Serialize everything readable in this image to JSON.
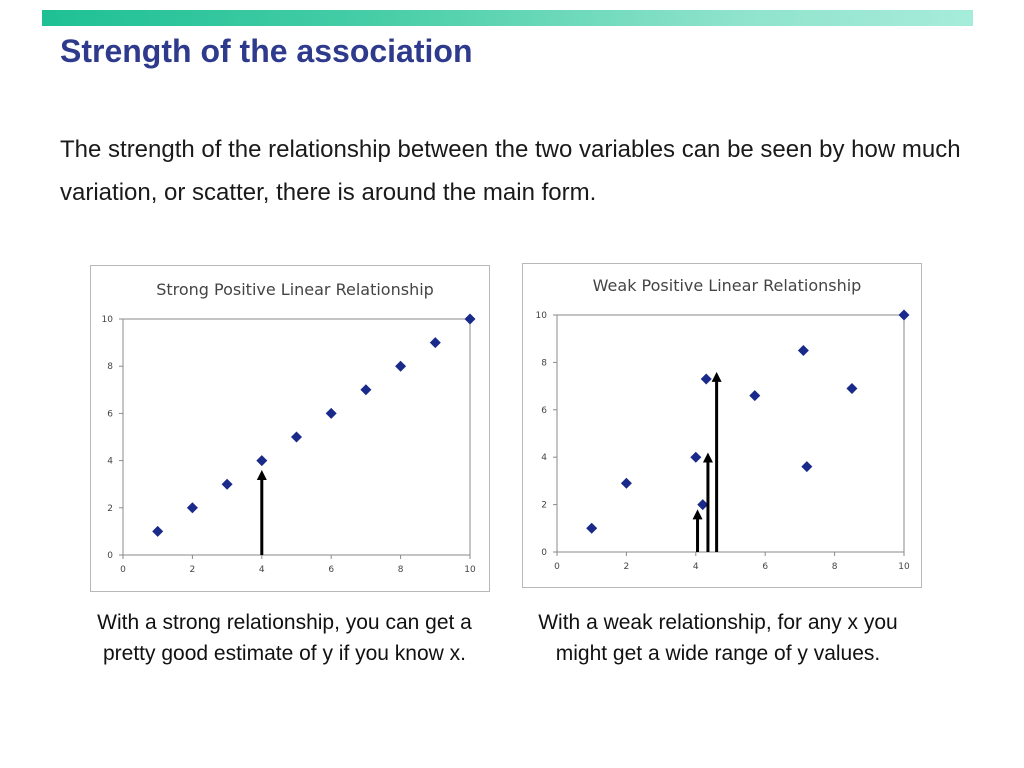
{
  "slide": {
    "title": "Strength of the association",
    "body": "The strength of the relationship between the two variables can be seen by how much variation, or scatter, there is around the main form."
  },
  "colors": {
    "point": "#1a2a8a",
    "arrow": "#000000",
    "title": "#2e3a8c"
  },
  "chart_data": [
    {
      "type": "scatter",
      "title": "Strong Positive Linear Relationship",
      "xlabel": "",
      "ylabel": "",
      "xlim": [
        0,
        10
      ],
      "ylim": [
        0,
        10
      ],
      "xticks": [
        0,
        2,
        4,
        6,
        8,
        10
      ],
      "yticks": [
        0,
        2,
        4,
        6,
        8,
        10
      ],
      "grid": false,
      "points": [
        {
          "x": 1,
          "y": 1
        },
        {
          "x": 2,
          "y": 2
        },
        {
          "x": 3,
          "y": 3
        },
        {
          "x": 4,
          "y": 4
        },
        {
          "x": 5,
          "y": 5
        },
        {
          "x": 6,
          "y": 6
        },
        {
          "x": 7,
          "y": 7
        },
        {
          "x": 8,
          "y": 8
        },
        {
          "x": 9,
          "y": 9
        },
        {
          "x": 10,
          "y": 10
        }
      ],
      "arrows": [
        {
          "x": 4,
          "y_to": 3.6
        }
      ],
      "caption": "With a strong relationship, you can get a pretty good estimate of y if you know x."
    },
    {
      "type": "scatter",
      "title": "Weak Positive Linear Relationship",
      "xlabel": "",
      "ylabel": "",
      "xlim": [
        0,
        10
      ],
      "ylim": [
        0,
        10
      ],
      "xticks": [
        0,
        2,
        4,
        6,
        8,
        10
      ],
      "yticks": [
        0,
        2,
        4,
        6,
        8,
        10
      ],
      "grid": false,
      "points": [
        {
          "x": 1,
          "y": 1
        },
        {
          "x": 2,
          "y": 2.9
        },
        {
          "x": 4,
          "y": 4
        },
        {
          "x": 4.2,
          "y": 2
        },
        {
          "x": 4.3,
          "y": 7.3
        },
        {
          "x": 5.7,
          "y": 6.6
        },
        {
          "x": 7.1,
          "y": 8.5
        },
        {
          "x": 7.2,
          "y": 3.6
        },
        {
          "x": 8.5,
          "y": 6.9
        },
        {
          "x": 10,
          "y": 10
        }
      ],
      "arrows": [
        {
          "x": 4.05,
          "y_to": 1.8
        },
        {
          "x": 4.35,
          "y_to": 4.2
        },
        {
          "x": 4.6,
          "y_to": 7.6
        }
      ],
      "caption": "With a weak relationship, for any x you might get a wide range of  y values."
    }
  ]
}
